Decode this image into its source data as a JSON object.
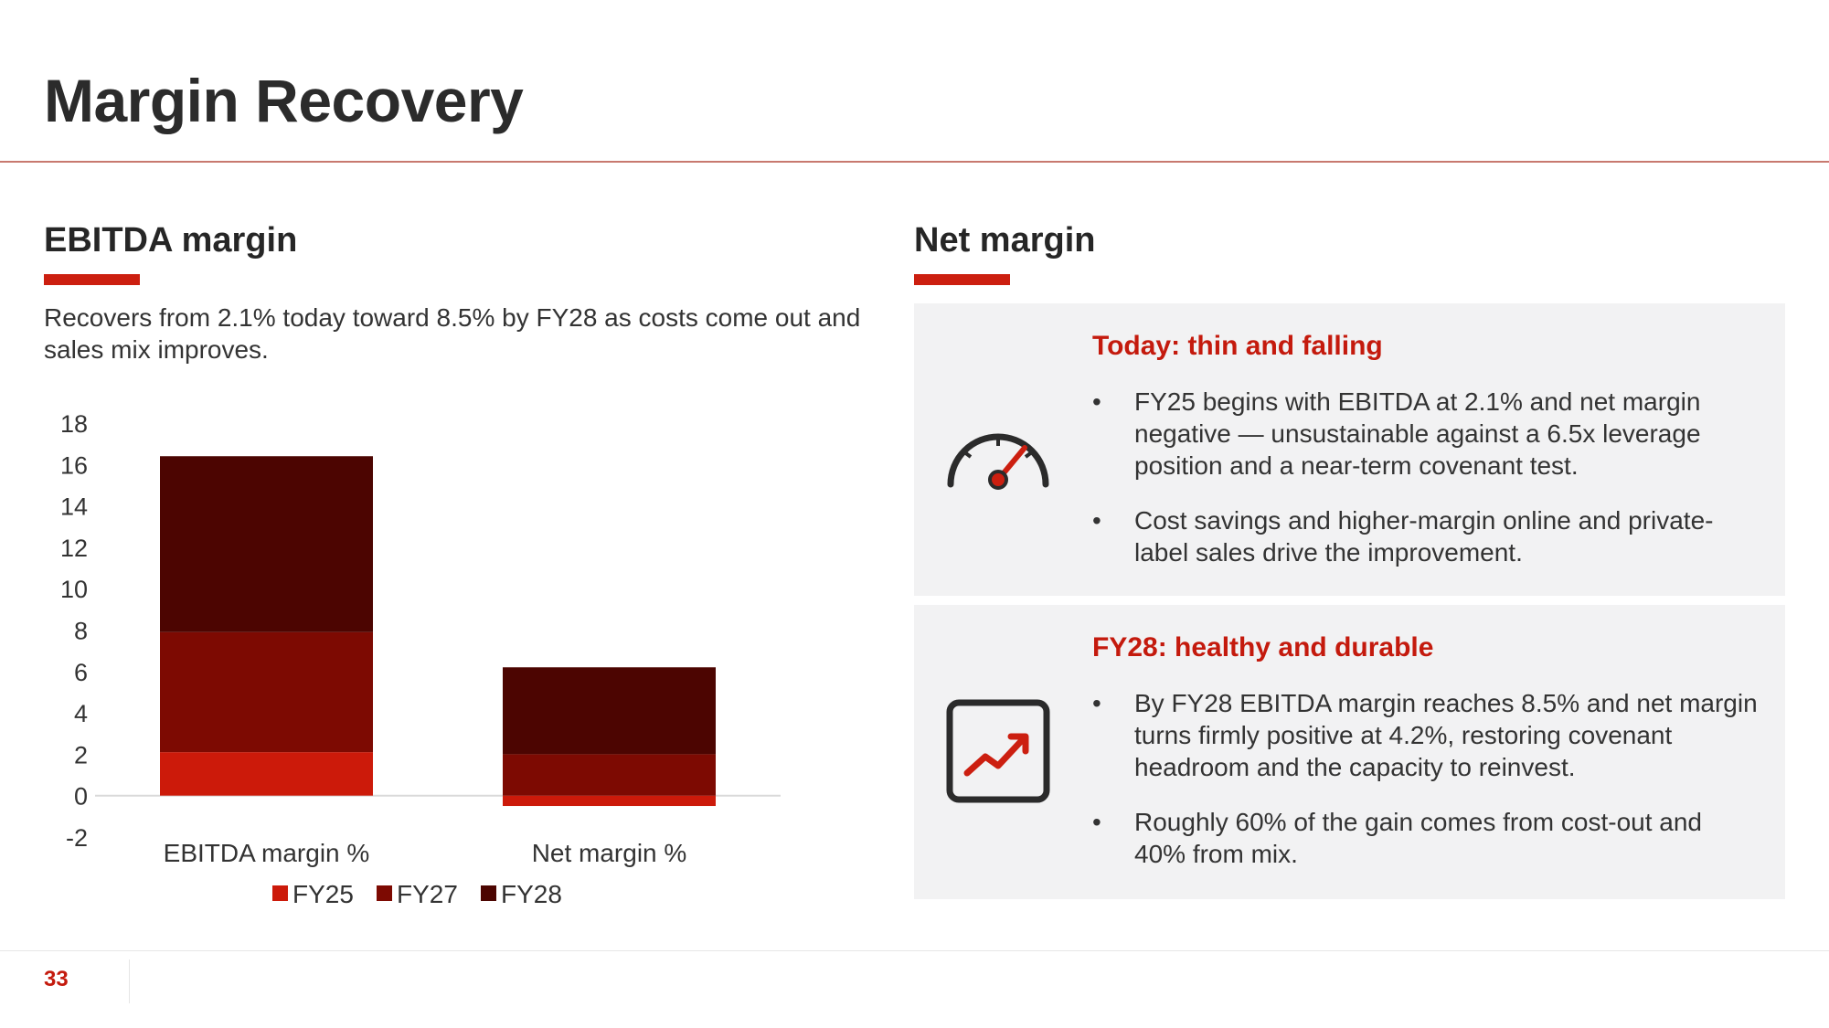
{
  "slide": {
    "title": "Margin Recovery",
    "page_number": "33"
  },
  "left": {
    "heading": "EBITDA margin",
    "description": "Recovers from 2.1% today toward 8.5% by FY28 as costs come out and sales mix improves."
  },
  "right": {
    "heading": "Net margin",
    "cards": [
      {
        "icon": "speedometer-icon",
        "heading": "Today: thin and falling",
        "bullets": [
          "FY25 begins with EBITDA at 2.1% and net margin negative — unsustainable against a 6.5x leverage position and a near-term covenant test.",
          "Cost savings and higher-margin online and private-label sales drive the improvement."
        ]
      },
      {
        "icon": "trend-up-chart-icon",
        "heading": "FY28: healthy and durable",
        "bullets": [
          "By FY28 EBITDA margin reaches 8.5% and net margin turns firmly positive at 4.2%, restoring covenant headroom and the capacity to reinvest.",
          "Roughly 60% of the gain comes from cost-out and 40% from mix."
        ]
      }
    ]
  },
  "colors": {
    "accent": "#cc1f10",
    "fy25": "#cc1a0a",
    "fy27": "#7d0a02",
    "fy28": "#4c0501",
    "card_bg": "#f2f2f3"
  },
  "chart_data": {
    "type": "bar",
    "stacked": true,
    "categories": [
      "EBITDA margin %",
      "Net margin %"
    ],
    "series": [
      {
        "name": "FY25",
        "values": [
          2.1,
          -0.5
        ]
      },
      {
        "name": "FY27",
        "values": [
          5.8,
          2.0
        ]
      },
      {
        "name": "FY28",
        "values": [
          8.5,
          4.2
        ]
      }
    ],
    "ylim": [
      -2,
      18
    ],
    "yticks": [
      18,
      16,
      14,
      12,
      10,
      8,
      6,
      4,
      2,
      0,
      -2
    ],
    "legend": "bottom",
    "grid": false
  }
}
